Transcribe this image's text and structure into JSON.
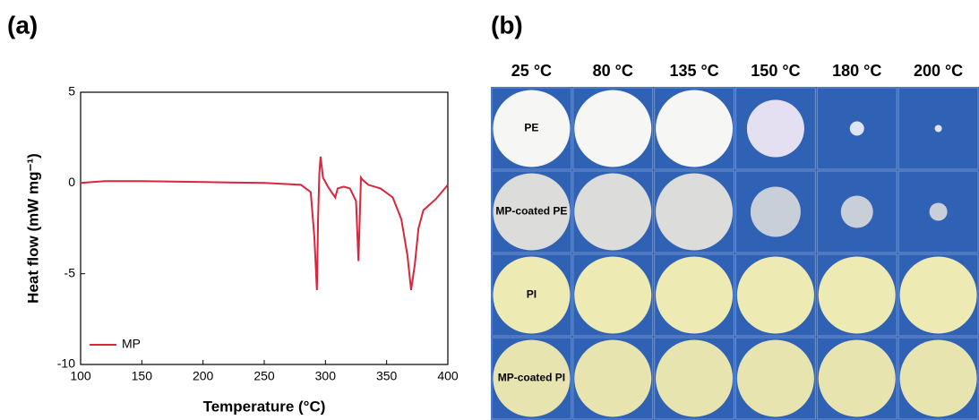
{
  "panel_labels": [
    "(a)",
    "(b)"
  ],
  "chart_data": {
    "type": "line",
    "xlabel": "Temperature (°C)",
    "ylabel": "Heat flow (mW mg⁻¹)",
    "x": [
      100,
      120,
      150,
      200,
      250,
      280,
      288,
      291,
      293,
      294,
      295,
      296,
      298,
      302,
      306,
      308,
      310,
      315,
      320,
      325,
      327,
      328,
      329,
      330,
      335,
      345,
      355,
      362,
      367,
      370,
      373,
      376,
      380,
      390,
      400
    ],
    "series": [
      {
        "name": "MP",
        "color": "#d7263d",
        "values": [
          0,
          0.1,
          0.1,
          0.05,
          0,
          -0.1,
          -0.5,
          -3,
          -5.9,
          -2,
          0.5,
          1.45,
          0.3,
          -0.2,
          -0.6,
          -0.8,
          -0.3,
          -0.2,
          -0.3,
          -1,
          -4.3,
          -2,
          0.3,
          0.2,
          -0.1,
          -0.3,
          -0.8,
          -2,
          -4,
          -5.9,
          -4.5,
          -2.5,
          -1.5,
          -0.9,
          -0.1
        ]
      }
    ],
    "xlim": [
      100,
      400
    ],
    "xticks": [
      100,
      150,
      200,
      250,
      300,
      350,
      400
    ],
    "ylim": [
      -10,
      5
    ],
    "yticks": [
      -10,
      -5,
      0,
      5
    ],
    "grid": false,
    "legend": "lower left"
  },
  "photo_panel": {
    "columns": [
      "25 °C",
      "80 °C",
      "135 °C",
      "150 °C",
      "180 °C",
      "200 °C"
    ],
    "rows": [
      "PE",
      "MP-coated PE",
      "PI",
      "MP-coated PI"
    ]
  }
}
